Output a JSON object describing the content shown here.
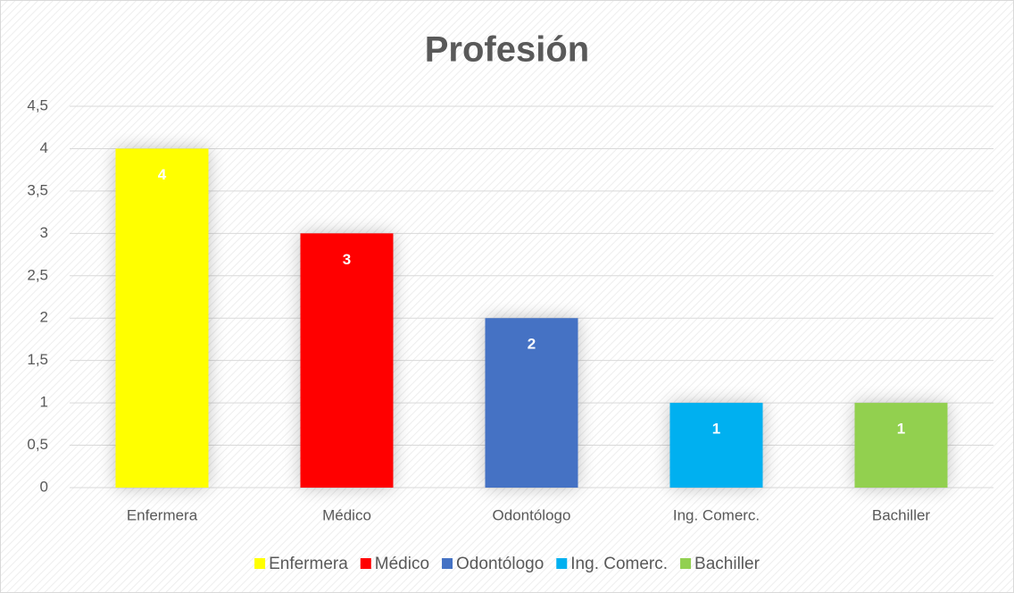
{
  "chart_data": {
    "type": "bar",
    "title": "Profesión",
    "categories": [
      "Enfermera",
      "Médico",
      "Odontólogo",
      "Ing. Comerc.",
      "Bachiller"
    ],
    "values": [
      4,
      3,
      2,
      1,
      1
    ],
    "colors": [
      "#ffff00",
      "#ff0000",
      "#4472c4",
      "#00b0f0",
      "#92d050"
    ],
    "ylim": [
      0,
      4.5
    ],
    "yticks": [
      0,
      {
        "value": 0.5,
        "label": "0,5"
      },
      1,
      {
        "value": 1.5,
        "label": "1,5"
      },
      2,
      {
        "value": 2.5,
        "label": "2,5"
      },
      3,
      {
        "value": 3.5,
        "label": "3,5"
      },
      4,
      {
        "value": 4.5,
        "label": "4,5"
      }
    ],
    "grid": true,
    "legend": "bottom"
  }
}
